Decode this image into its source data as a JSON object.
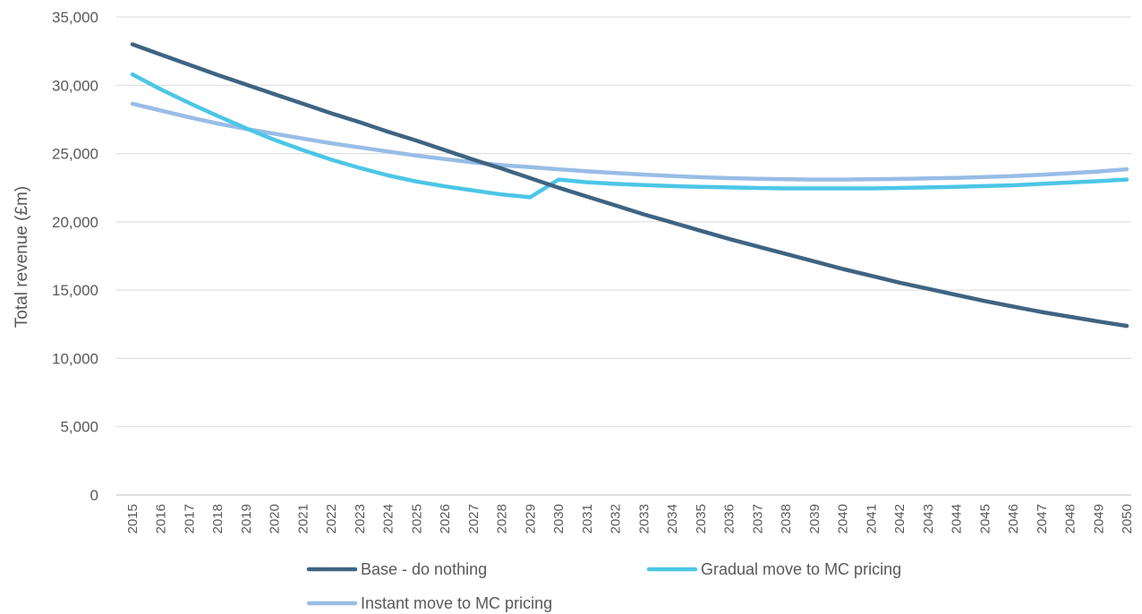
{
  "chart_data": {
    "type": "line",
    "ylabel": "Total revenue (£m)",
    "xlabel": "",
    "ylim": [
      0,
      35000
    ],
    "yticks": [
      "0",
      "5,000",
      "10,000",
      "15,000",
      "20,000",
      "25,000",
      "30,000",
      "35,000"
    ],
    "grid": true,
    "legend_position": "bottom",
    "x": [
      "2015",
      "2016",
      "2017",
      "2018",
      "2019",
      "2020",
      "2021",
      "2022",
      "2023",
      "2024",
      "2025",
      "2026",
      "2027",
      "2028",
      "2029",
      "2030",
      "2031",
      "2032",
      "2033",
      "2034",
      "2035",
      "2036",
      "2037",
      "2038",
      "2039",
      "2040",
      "2041",
      "2042",
      "2043",
      "2044",
      "2045",
      "2046",
      "2047",
      "2048",
      "2049",
      "2050"
    ],
    "series": [
      {
        "name": "Base - do nothing",
        "color": "#3f6482",
        "values": [
          33000,
          32250,
          31500,
          30750,
          30050,
          29350,
          28650,
          27950,
          27300,
          26600,
          25950,
          25250,
          24550,
          23900,
          23200,
          22500,
          21850,
          21200,
          20550,
          19950,
          19350,
          18750,
          18200,
          17650,
          17100,
          16550,
          16050,
          15550,
          15100,
          14650,
          14200,
          13800,
          13400,
          13050,
          12700,
          12380
        ]
      },
      {
        "name": "Gradual move to MC pricing",
        "color": "#4cc6e6",
        "values": [
          30800,
          29700,
          28700,
          27750,
          26850,
          26000,
          25250,
          24550,
          23950,
          23400,
          22950,
          22600,
          22300,
          22000,
          21800,
          23100,
          22900,
          22780,
          22700,
          22620,
          22560,
          22520,
          22480,
          22450,
          22450,
          22450,
          22450,
          22480,
          22520,
          22560,
          22620,
          22680,
          22780,
          22880,
          22980,
          23100
        ]
      },
      {
        "name": "Instant move to MC pricing",
        "color": "#98bde6",
        "values": [
          28650,
          28150,
          27650,
          27200,
          26800,
          26450,
          26100,
          25750,
          25450,
          25150,
          24850,
          24600,
          24350,
          24150,
          24000,
          23850,
          23700,
          23580,
          23460,
          23360,
          23270,
          23200,
          23150,
          23120,
          23100,
          23100,
          23120,
          23140,
          23180,
          23220,
          23280,
          23350,
          23450,
          23560,
          23690,
          23850
        ]
      }
    ]
  }
}
